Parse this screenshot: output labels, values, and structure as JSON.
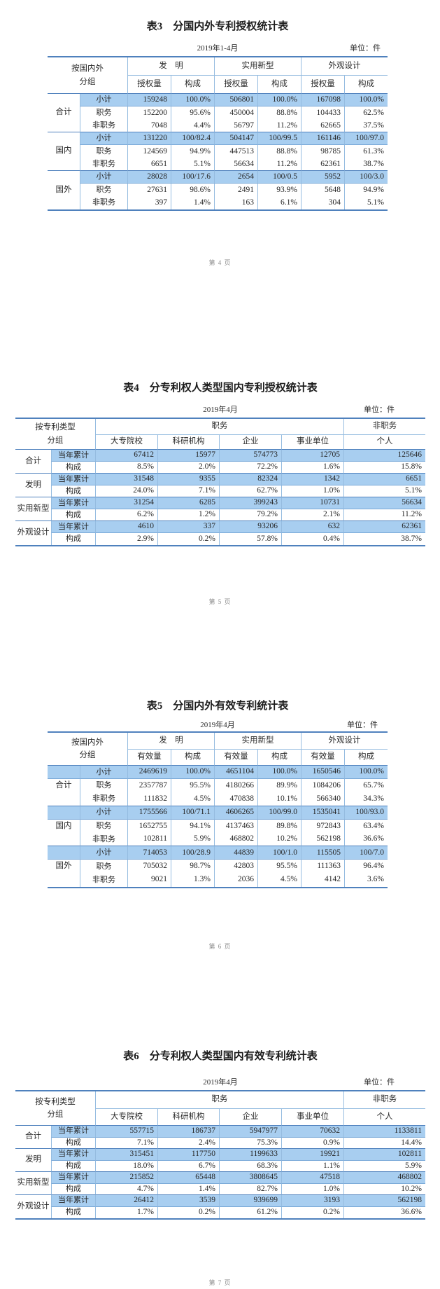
{
  "colors": {
    "highlight": "#a8cef0",
    "border_strong": "#4f81bd",
    "border_light": "#95bce0",
    "text": "#262626",
    "page_number_text": "#8d8d8d"
  },
  "page_numbers": [
    "第 4 页",
    "第 5 页",
    "第 6 页",
    "第 7 页"
  ],
  "tables": [
    {
      "kind": "geo",
      "full_highlight": false,
      "title": "表3　分国内外专利授权统计表",
      "period": "2019年1-4月",
      "unit": "单位：件",
      "head": {
        "group_line1": "按国内外",
        "group_line2": "分组",
        "col_groups": [
          "发　明",
          "实用新型",
          "外观设计"
        ],
        "sub_cols": [
          "授权量",
          "构成"
        ]
      },
      "groups": [
        {
          "name": "合计",
          "rows": [
            {
              "label": "小计",
              "highlight": true,
              "values": [
                "159248",
                "100.0%",
                "506801",
                "100.0%",
                "167098",
                "100.0%"
              ]
            },
            {
              "label": "职务",
              "values": [
                "152200",
                "95.6%",
                "450004",
                "88.8%",
                "104433",
                "62.5%"
              ]
            },
            {
              "label": "非职务",
              "values": [
                "7048",
                "4.4%",
                "56797",
                "11.2%",
                "62665",
                "37.5%"
              ]
            }
          ]
        },
        {
          "name": "国内",
          "rows": [
            {
              "label": "小计",
              "highlight": true,
              "values": [
                "131220",
                "100/82.4",
                "504147",
                "100/99.5",
                "161146",
                "100/97.0"
              ]
            },
            {
              "label": "职务",
              "values": [
                "124569",
                "94.9%",
                "447513",
                "88.8%",
                "98785",
                "61.3%"
              ]
            },
            {
              "label": "非职务",
              "values": [
                "6651",
                "5.1%",
                "56634",
                "11.2%",
                "62361",
                "38.7%"
              ]
            }
          ]
        },
        {
          "name": "国外",
          "rows": [
            {
              "label": "小计",
              "highlight": true,
              "values": [
                "28028",
                "100/17.6",
                "2654",
                "100/0.5",
                "5952",
                "100/3.0"
              ]
            },
            {
              "label": "职务",
              "values": [
                "27631",
                "98.6%",
                "2491",
                "93.9%",
                "5648",
                "94.9%"
              ]
            },
            {
              "label": "非职务",
              "values": [
                "397",
                "1.4%",
                "163",
                "6.1%",
                "304",
                "5.1%"
              ]
            }
          ]
        }
      ]
    },
    {
      "kind": "owner",
      "full_highlight": false,
      "title": "表4　分专利权人类型国内专利授权统计表",
      "period": "2019年4月",
      "unit": "单位：件",
      "head": {
        "group_line1": "按专利类型",
        "group_line2": "分组",
        "col_groups": [
          "职务",
          "非职务"
        ],
        "sub_cols": [
          "大专院校",
          "科研机构",
          "企业",
          "事业单位",
          "个人"
        ]
      },
      "groups": [
        {
          "name": "合计",
          "rows": [
            {
              "label": "当年累计",
              "highlight": true,
              "values": [
                "67412",
                "15977",
                "574773",
                "12705",
                "125646"
              ]
            },
            {
              "label": "构成",
              "values": [
                "8.5%",
                "2.0%",
                "72.2%",
                "1.6%",
                "15.8%"
              ]
            }
          ]
        },
        {
          "name": "发明",
          "rows": [
            {
              "label": "当年累计",
              "highlight": true,
              "values": [
                "31548",
                "9355",
                "82324",
                "1342",
                "6651"
              ]
            },
            {
              "label": "构成",
              "values": [
                "24.0%",
                "7.1%",
                "62.7%",
                "1.0%",
                "5.1%"
              ]
            }
          ]
        },
        {
          "name": "实用新型",
          "rows": [
            {
              "label": "当年累计",
              "highlight": true,
              "values": [
                "31254",
                "6285",
                "399243",
                "10731",
                "56634"
              ]
            },
            {
              "label": "构成",
              "values": [
                "6.2%",
                "1.2%",
                "79.2%",
                "2.1%",
                "11.2%"
              ]
            }
          ]
        },
        {
          "name": "外观设计",
          "rows": [
            {
              "label": "当年累计",
              "highlight": true,
              "values": [
                "4610",
                "337",
                "93206",
                "632",
                "62361"
              ]
            },
            {
              "label": "构成",
              "values": [
                "2.9%",
                "0.2%",
                "57.8%",
                "0.4%",
                "38.7%"
              ]
            }
          ]
        }
      ]
    },
    {
      "kind": "geo",
      "full_highlight": true,
      "title": "表5　分国内外有效专利统计表",
      "period": "2019年4月",
      "unit": "单位：件",
      "head": {
        "group_line1": "按国内外",
        "group_line2": "分组",
        "col_groups": [
          "发　明",
          "实用新型",
          "外观设计"
        ],
        "sub_cols": [
          "有效量",
          "构成"
        ]
      },
      "groups": [
        {
          "name": "合计",
          "rows": [
            {
              "label": "小计",
              "highlight": true,
              "values": [
                "2469619",
                "100.0%",
                "4651104",
                "100.0%",
                "1650546",
                "100.0%"
              ]
            },
            {
              "label": "职务",
              "values": [
                "2357787",
                "95.5%",
                "4180266",
                "89.9%",
                "1084206",
                "65.7%"
              ]
            },
            {
              "label": "非职务",
              "values": [
                "111832",
                "4.5%",
                "470838",
                "10.1%",
                "566340",
                "34.3%"
              ]
            }
          ]
        },
        {
          "name": "国内",
          "rows": [
            {
              "label": "小计",
              "highlight": true,
              "values": [
                "1755566",
                "100/71.1",
                "4606265",
                "100/99.0",
                "1535041",
                "100/93.0"
              ]
            },
            {
              "label": "职务",
              "values": [
                "1652755",
                "94.1%",
                "4137463",
                "89.8%",
                "972843",
                "63.4%"
              ]
            },
            {
              "label": "非职务",
              "values": [
                "102811",
                "5.9%",
                "468802",
                "10.2%",
                "562198",
                "36.6%"
              ]
            }
          ]
        },
        {
          "name": "国外",
          "rows": [
            {
              "label": "小计",
              "highlight": true,
              "values": [
                "714053",
                "100/28.9",
                "44839",
                "100/1.0",
                "115505",
                "100/7.0"
              ]
            },
            {
              "label": "职务",
              "values": [
                "705032",
                "98.7%",
                "42803",
                "95.5%",
                "111363",
                "96.4%"
              ]
            },
            {
              "label": "非职务",
              "values": [
                "9021",
                "1.3%",
                "2036",
                "4.5%",
                "4142",
                "3.6%"
              ]
            }
          ]
        }
      ]
    },
    {
      "kind": "owner",
      "full_highlight": false,
      "title": "表6　分专利权人类型国内有效专利统计表",
      "period": "2019年4月",
      "unit": "单位：件",
      "head": {
        "group_line1": "按专利类型",
        "group_line2": "分组",
        "col_groups": [
          "职务",
          "非职务"
        ],
        "sub_cols": [
          "大专院校",
          "科研机构",
          "企业",
          "事业单位",
          "个人"
        ]
      },
      "groups": [
        {
          "name": "合计",
          "rows": [
            {
              "label": "当年累计",
              "highlight": true,
              "values": [
                "557715",
                "186737",
                "5947977",
                "70632",
                "1133811"
              ]
            },
            {
              "label": "构成",
              "values": [
                "7.1%",
                "2.4%",
                "75.3%",
                "0.9%",
                "14.4%"
              ]
            }
          ]
        },
        {
          "name": "发明",
          "rows": [
            {
              "label": "当年累计",
              "highlight": true,
              "values": [
                "315451",
                "117750",
                "1199633",
                "19921",
                "102811"
              ]
            },
            {
              "label": "构成",
              "values": [
                "18.0%",
                "6.7%",
                "68.3%",
                "1.1%",
                "5.9%"
              ]
            }
          ]
        },
        {
          "name": "实用新型",
          "rows": [
            {
              "label": "当年累计",
              "highlight": true,
              "values": [
                "215852",
                "65448",
                "3808645",
                "47518",
                "468802"
              ]
            },
            {
              "label": "构成",
              "values": [
                "4.7%",
                "1.4%",
                "82.7%",
                "1.0%",
                "10.2%"
              ]
            }
          ]
        },
        {
          "name": "外观设计",
          "rows": [
            {
              "label": "当年累计",
              "highlight": true,
              "values": [
                "26412",
                "3539",
                "939699",
                "3193",
                "562198"
              ]
            },
            {
              "label": "构成",
              "values": [
                "1.7%",
                "0.2%",
                "61.2%",
                "0.2%",
                "36.6%"
              ]
            }
          ]
        }
      ]
    }
  ]
}
